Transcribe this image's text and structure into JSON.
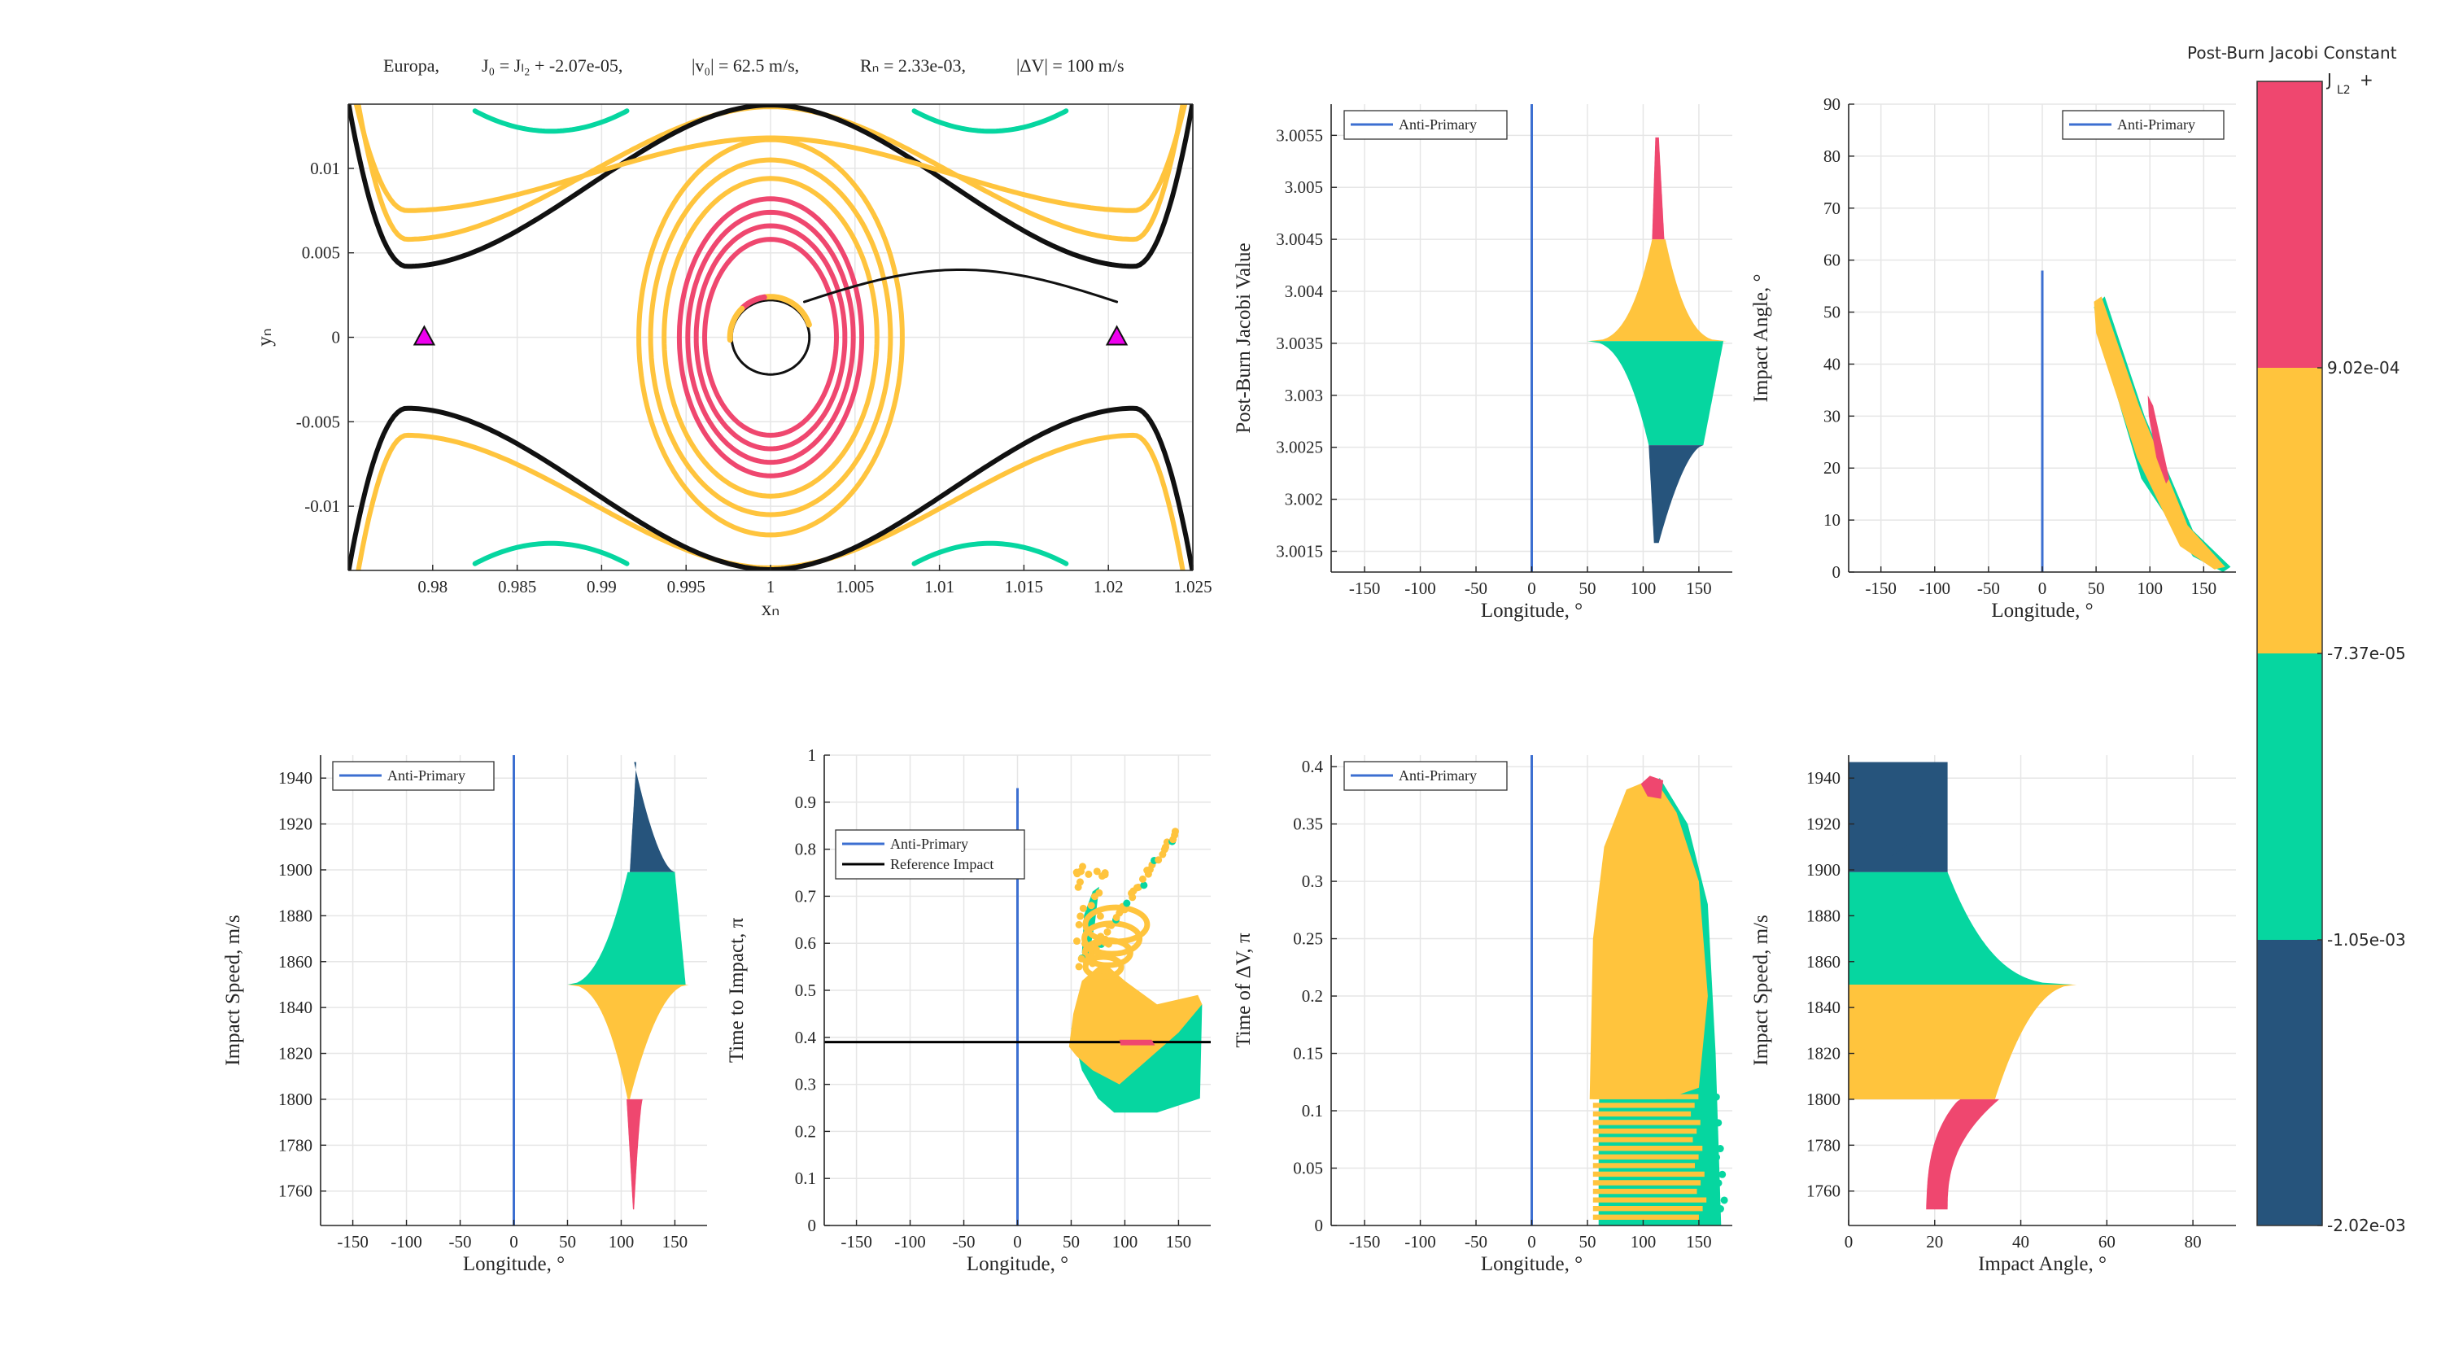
{
  "figure": {
    "colorbar": {
      "title": "Post-Burn Jacobi Constant",
      "top_label": "J",
      "top_label_sub": "L2",
      "top_label_suffix": "+",
      "tick_labels": [
        "9.02e-04",
        "-7.37e-05",
        "-1.05e-03",
        "-2.02e-03"
      ],
      "colors": [
        "#ef476f",
        "#ffc43d",
        "#06d6a0",
        "#26547c"
      ]
    }
  },
  "chart_data": [
    {
      "id": "trajectory",
      "type": "line",
      "title_parts": [
        "Europa,",
        "J₀ = Jₗ₂ + -2.07e-05,",
        "|v₀| = 62.5 m/s,",
        "Rₙ = 2.33e-03,",
        "|ΔV| = 100 m/s"
      ],
      "xlabel": "xₙ",
      "ylabel": "yₙ",
      "xlim": [
        0.975,
        1.025
      ],
      "ylim": [
        -0.0138,
        0.0138
      ],
      "xticks": [
        "0.98",
        "0.985",
        "0.99",
        "0.995",
        "1",
        "1.005",
        "1.01",
        "1.015",
        "1.02",
        "1.025"
      ],
      "xtick_values": [
        0.98,
        0.985,
        0.99,
        0.995,
        1,
        1.005,
        1.01,
        1.015,
        1.02,
        1.025
      ],
      "yticks": [
        "0.01",
        "0.005",
        "0",
        "-0.005",
        "-0.01"
      ],
      "ytick_values": [
        0.01,
        0.005,
        0,
        -0.005,
        -0.01
      ],
      "markers": [
        {
          "name": "L1",
          "x": 0.9795,
          "y": 0
        },
        {
          "name": "L2",
          "x": 1.0205,
          "y": 0
        }
      ],
      "grid": true
    },
    {
      "id": "jacobi-vs-longitude",
      "type": "scatter",
      "xlabel": "Longitude, °",
      "ylabel": "Post-Burn Jacobi Value",
      "xlim": [
        -180,
        180
      ],
      "ylim": [
        3.0013,
        3.0058
      ],
      "xticks": [
        "-150",
        "-100",
        "-50",
        "0",
        "50",
        "100",
        "150"
      ],
      "yticks": [
        "3.0055",
        "3.005",
        "3.0045",
        "3.004",
        "3.0035",
        "3.003",
        "3.0025",
        "3.002",
        "3.0015"
      ],
      "ytick_values": [
        3.0055,
        3.005,
        3.0045,
        3.004,
        3.0035,
        3.003,
        3.0025,
        3.002,
        3.0015
      ],
      "legend": [
        "Anti-Primary"
      ],
      "legend_position": "top-left",
      "anti_primary": 0,
      "grid": true
    },
    {
      "id": "angle-vs-longitude",
      "type": "scatter",
      "xlabel": "Longitude, °",
      "ylabel": "Impact Angle, °",
      "xlim": [
        -180,
        180
      ],
      "ylim": [
        0,
        90
      ],
      "xticks": [
        "-150",
        "-100",
        "-50",
        "0",
        "50",
        "100",
        "150"
      ],
      "yticks": [
        "90",
        "80",
        "70",
        "60",
        "50",
        "40",
        "30",
        "20",
        "10",
        "0"
      ],
      "ytick_values": [
        90,
        80,
        70,
        60,
        50,
        40,
        30,
        20,
        10,
        0
      ],
      "legend": [
        "Anti-Primary"
      ],
      "legend_position": "top-right",
      "anti_primary": 0,
      "grid": true
    },
    {
      "id": "speed-vs-longitude",
      "type": "scatter",
      "xlabel": "Longitude, °",
      "ylabel": "Impact Speed, m/s",
      "xlim": [
        -180,
        180
      ],
      "ylim": [
        1745,
        1950
      ],
      "xticks": [
        "-150",
        "-100",
        "-50",
        "0",
        "50",
        "100",
        "150"
      ],
      "yticks": [
        "1940",
        "1920",
        "1900",
        "1880",
        "1860",
        "1840",
        "1820",
        "1800",
        "1780",
        "1760"
      ],
      "ytick_values": [
        1940,
        1920,
        1900,
        1880,
        1860,
        1840,
        1820,
        1800,
        1780,
        1760
      ],
      "legend": [
        "Anti-Primary"
      ],
      "legend_position": "top-left",
      "anti_primary": 0,
      "grid": true
    },
    {
      "id": "time-to-impact-vs-longitude",
      "type": "scatter",
      "xlabel": "Longitude, °",
      "ylabel": "Time to Impact, π",
      "xlim": [
        -180,
        180
      ],
      "ylim": [
        0,
        1
      ],
      "xticks": [
        "-150",
        "-100",
        "-50",
        "0",
        "50",
        "100",
        "150"
      ],
      "yticks": [
        "1",
        "0.9",
        "0.8",
        "0.7",
        "0.6",
        "0.5",
        "0.4",
        "0.3",
        "0.2",
        "0.1",
        "0"
      ],
      "ytick_values": [
        1,
        0.9,
        0.8,
        0.7,
        0.6,
        0.5,
        0.4,
        0.3,
        0.2,
        0.1,
        0
      ],
      "legend": [
        "Anti-Primary",
        "Reference Impact"
      ],
      "legend_position": "middle-left",
      "anti_primary": 0,
      "reference_impact": 0.39,
      "grid": true
    },
    {
      "id": "time-of-dv-vs-longitude",
      "type": "scatter",
      "xlabel": "Longitude, °",
      "ylabel": "Time of ΔV, π",
      "xlim": [
        -180,
        180
      ],
      "ylim": [
        0,
        0.41
      ],
      "xticks": [
        "-150",
        "-100",
        "-50",
        "0",
        "50",
        "100",
        "150"
      ],
      "yticks": [
        "0.4",
        "0.35",
        "0.3",
        "0.25",
        "0.2",
        "0.15",
        "0.1",
        "0.05",
        "0"
      ],
      "ytick_values": [
        0.4,
        0.35,
        0.3,
        0.25,
        0.2,
        0.15,
        0.1,
        0.05,
        0
      ],
      "legend": [
        "Anti-Primary"
      ],
      "legend_position": "top-left",
      "anti_primary": 0,
      "grid": true
    },
    {
      "id": "speed-vs-angle",
      "type": "scatter",
      "xlabel": "Impact Angle, °",
      "ylabel": "Impact Speed, m/s",
      "xlim": [
        0,
        90
      ],
      "ylim": [
        1745,
        1950
      ],
      "xticks": [
        "0",
        "20",
        "40",
        "60",
        "80"
      ],
      "xtick_values": [
        0,
        20,
        40,
        60,
        80
      ],
      "yticks": [
        "1940",
        "1920",
        "1900",
        "1880",
        "1860",
        "1840",
        "1820",
        "1800",
        "1780",
        "1760"
      ],
      "ytick_values": [
        1940,
        1920,
        1900,
        1880,
        1860,
        1840,
        1820,
        1800,
        1780,
        1760
      ],
      "grid": true
    }
  ]
}
